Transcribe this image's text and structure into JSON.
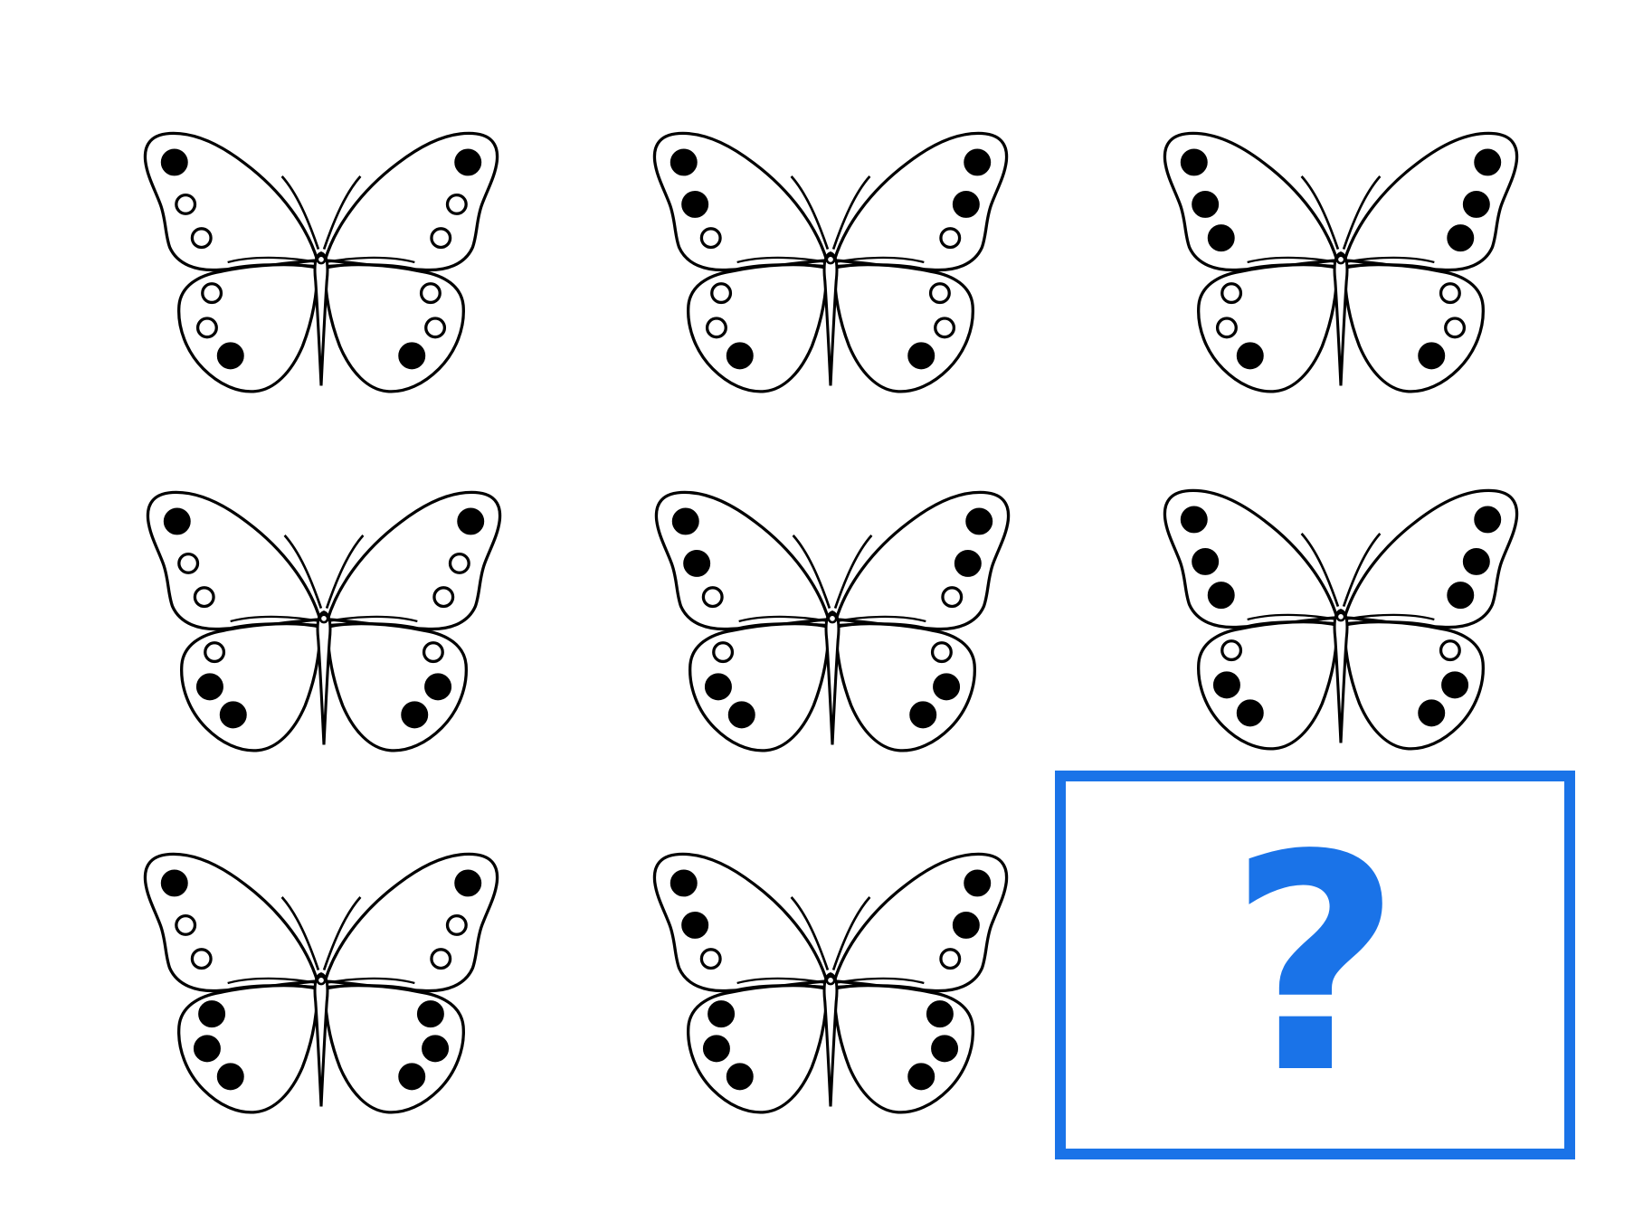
{
  "puzzle": {
    "type": "find-the-missing-pattern",
    "rows": 3,
    "cols": 3,
    "spot_legend": {
      "1": "filled",
      "0": "hollow"
    },
    "cells": [
      {
        "row": 1,
        "col": 1,
        "upper_left": [
          1,
          0,
          0
        ],
        "upper_right": [
          1,
          0,
          0
        ],
        "lower_left": [
          0,
          0,
          1
        ],
        "lower_right": [
          0,
          0,
          1
        ]
      },
      {
        "row": 1,
        "col": 2,
        "upper_left": [
          1,
          1,
          0
        ],
        "upper_right": [
          1,
          1,
          0
        ],
        "lower_left": [
          0,
          0,
          1
        ],
        "lower_right": [
          0,
          0,
          1
        ]
      },
      {
        "row": 1,
        "col": 3,
        "upper_left": [
          1,
          1,
          1
        ],
        "upper_right": [
          1,
          1,
          1
        ],
        "lower_left": [
          0,
          0,
          1
        ],
        "lower_right": [
          0,
          0,
          1
        ]
      },
      {
        "row": 2,
        "col": 1,
        "upper_left": [
          1,
          0,
          0
        ],
        "upper_right": [
          1,
          0,
          0
        ],
        "lower_left": [
          0,
          1,
          1
        ],
        "lower_right": [
          0,
          1,
          1
        ]
      },
      {
        "row": 2,
        "col": 2,
        "upper_left": [
          1,
          1,
          0
        ],
        "upper_right": [
          1,
          1,
          0
        ],
        "lower_left": [
          0,
          1,
          1
        ],
        "lower_right": [
          0,
          1,
          1
        ]
      },
      {
        "row": 2,
        "col": 3,
        "upper_left": [
          1,
          1,
          1
        ],
        "upper_right": [
          1,
          1,
          1
        ],
        "lower_left": [
          0,
          1,
          1
        ],
        "lower_right": [
          0,
          1,
          1
        ]
      },
      {
        "row": 3,
        "col": 1,
        "upper_left": [
          1,
          0,
          0
        ],
        "upper_right": [
          1,
          0,
          0
        ],
        "lower_left": [
          1,
          1,
          1
        ],
        "lower_right": [
          1,
          1,
          1
        ]
      },
      {
        "row": 3,
        "col": 2,
        "upper_left": [
          1,
          1,
          0
        ],
        "upper_right": [
          1,
          1,
          0
        ],
        "lower_left": [
          1,
          1,
          1
        ],
        "lower_right": [
          1,
          1,
          1
        ]
      }
    ],
    "answer": {
      "row": 3,
      "col": 3,
      "text": "?"
    }
  },
  "colors": {
    "ink": "#000000",
    "wing_fill": "#ffffff",
    "accent": "#1a73e8"
  },
  "icons": {
    "cell": "butterfly-icon",
    "answer": "question-mark-icon"
  }
}
